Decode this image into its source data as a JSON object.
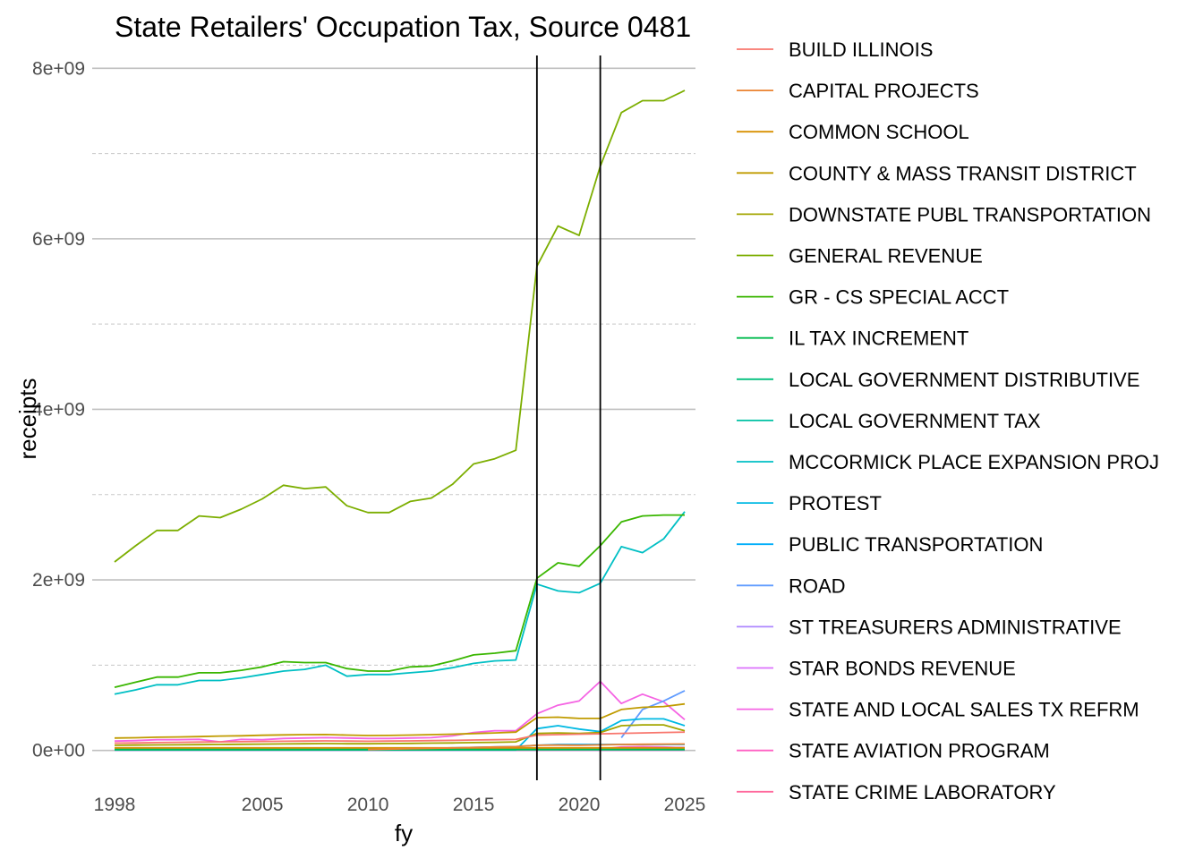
{
  "chart_data": {
    "type": "line",
    "title": "State Retailers' Occupation Tax, Source 0481",
    "xlabel": "fy",
    "ylabel": "receipts",
    "x_ticks": [
      1998,
      2005,
      2010,
      2015,
      2020,
      2025
    ],
    "y_ticks": [
      0,
      2000000000,
      4000000000,
      6000000000,
      8000000000
    ],
    "y_tick_labels": [
      "0e+00",
      "2e+09",
      "4e+09",
      "6e+09",
      "8e+09"
    ],
    "xlim": [
      1998,
      2025
    ],
    "ylim": [
      -350000000,
      8150000000
    ],
    "vlines": [
      2018,
      2021
    ],
    "grid": true,
    "legend_position": "right",
    "series": [
      {
        "name": "BUILD ILLINOIS",
        "color": "#F8766D",
        "x": [
          1998,
          1999,
          2000,
          2001,
          2002,
          2003,
          2004,
          2005,
          2006,
          2007,
          2008,
          2009,
          2010,
          2011,
          2012,
          2013,
          2014,
          2015,
          2016,
          2017,
          2018,
          2019,
          2020,
          2021,
          2022,
          2023,
          2024,
          2025
        ],
        "values": [
          85000000,
          88000000,
          92000000,
          95000000,
          98000000,
          100000000,
          102000000,
          105000000,
          108000000,
          110000000,
          112000000,
          110000000,
          108000000,
          110000000,
          112000000,
          115000000,
          118000000,
          122000000,
          125000000,
          128000000,
          180000000,
          185000000,
          190000000,
          195000000,
          200000000,
          205000000,
          210000000,
          215000000
        ]
      },
      {
        "name": "CAPITAL PROJECTS",
        "color": "#EA8331",
        "x": [
          2010,
          2011,
          2012,
          2013,
          2014,
          2015,
          2016,
          2017,
          2018,
          2019,
          2020,
          2021,
          2022,
          2023,
          2024,
          2025
        ],
        "values": [
          10000000,
          15000000,
          20000000,
          25000000,
          30000000,
          35000000,
          40000000,
          45000000,
          60000000,
          62000000,
          60000000,
          65000000,
          70000000,
          72000000,
          74000000,
          75000000
        ]
      },
      {
        "name": "COMMON SCHOOL",
        "color": "#D89000",
        "x": [
          1998,
          1999,
          2000,
          2001,
          2002,
          2003,
          2004,
          2005,
          2006,
          2007,
          2008,
          2009,
          2010,
          2011,
          2012,
          2013,
          2014,
          2015,
          2016,
          2017,
          2018,
          2019,
          2020,
          2021,
          2022,
          2023,
          2024,
          2025
        ],
        "values": [
          30000000,
          30000000,
          30000000,
          30000000,
          30000000,
          30000000,
          30000000,
          30000000,
          30000000,
          30000000,
          30000000,
          30000000,
          30000000,
          30000000,
          30000000,
          30000000,
          30000000,
          30000000,
          30000000,
          30000000,
          30000000,
          30000000,
          30000000,
          30000000,
          30000000,
          30000000,
          30000000,
          30000000
        ]
      },
      {
        "name": "COUNTY & MASS TRANSIT DISTRICT",
        "color": "#C09B00",
        "x": [
          1998,
          1999,
          2000,
          2001,
          2002,
          2003,
          2004,
          2005,
          2006,
          2007,
          2008,
          2009,
          2010,
          2011,
          2012,
          2013,
          2014,
          2015,
          2016,
          2017,
          2018,
          2019,
          2020,
          2021,
          2022,
          2023,
          2024,
          2025
        ],
        "values": [
          145000000,
          148000000,
          155000000,
          158000000,
          162000000,
          168000000,
          172000000,
          178000000,
          182000000,
          185000000,
          186000000,
          180000000,
          175000000,
          176000000,
          180000000,
          185000000,
          190000000,
          198000000,
          205000000,
          215000000,
          385000000,
          390000000,
          375000000,
          375000000,
          480000000,
          505000000,
          515000000,
          545000000
        ]
      },
      {
        "name": "DOWNSTATE PUBL TRANSPORTATION",
        "color": "#A3A500",
        "x": [
          1998,
          1999,
          2000,
          2001,
          2002,
          2003,
          2004,
          2005,
          2006,
          2007,
          2008,
          2009,
          2010,
          2011,
          2012,
          2013,
          2014,
          2015,
          2016,
          2017,
          2018,
          2019,
          2020,
          2021,
          2022,
          2023,
          2024,
          2025
        ],
        "values": [
          60000000,
          62000000,
          64000000,
          66000000,
          68000000,
          70000000,
          72000000,
          74000000,
          76000000,
          78000000,
          80000000,
          78000000,
          78000000,
          80000000,
          82000000,
          85000000,
          88000000,
          92000000,
          95000000,
          100000000,
          200000000,
          205000000,
          200000000,
          210000000,
          290000000,
          300000000,
          300000000,
          230000000
        ]
      },
      {
        "name": "GENERAL REVENUE",
        "color": "#7CAE00",
        "x": [
          1998,
          1999,
          2000,
          2001,
          2002,
          2003,
          2004,
          2005,
          2006,
          2007,
          2008,
          2009,
          2010,
          2011,
          2012,
          2013,
          2014,
          2015,
          2016,
          2017,
          2018,
          2019,
          2020,
          2021,
          2022,
          2023,
          2024,
          2025
        ],
        "values": [
          2210000000,
          2400000000,
          2580000000,
          2580000000,
          2750000000,
          2730000000,
          2830000000,
          2950000000,
          3110000000,
          3070000000,
          3090000000,
          2870000000,
          2790000000,
          2790000000,
          2920000000,
          2960000000,
          3120000000,
          3360000000,
          3420000000,
          3520000000,
          5680000000,
          6150000000,
          6040000000,
          6850000000,
          7480000000,
          7620000000,
          7620000000,
          7740000000
        ]
      },
      {
        "name": "GR - CS SPECIAL ACCT",
        "color": "#39B600",
        "x": [
          1998,
          1999,
          2000,
          2001,
          2002,
          2003,
          2004,
          2005,
          2006,
          2007,
          2008,
          2009,
          2010,
          2011,
          2012,
          2013,
          2014,
          2015,
          2016,
          2017,
          2018,
          2019,
          2020,
          2021,
          2022,
          2023,
          2024,
          2025
        ],
        "values": [
          740000000,
          800000000,
          860000000,
          860000000,
          910000000,
          910000000,
          940000000,
          980000000,
          1040000000,
          1030000000,
          1030000000,
          960000000,
          930000000,
          930000000,
          980000000,
          990000000,
          1050000000,
          1120000000,
          1140000000,
          1170000000,
          2020000000,
          2200000000,
          2160000000,
          2400000000,
          2680000000,
          2750000000,
          2760000000,
          2760000000
        ]
      },
      {
        "name": "IL TAX INCREMENT",
        "color": "#00BB4E",
        "x": [
          1998,
          1999,
          2000,
          2001,
          2002,
          2003,
          2004,
          2005,
          2006,
          2007,
          2008,
          2009,
          2010,
          2011,
          2012,
          2013,
          2014,
          2015,
          2016,
          2017,
          2018,
          2019,
          2020,
          2021,
          2022,
          2023,
          2024,
          2025
        ],
        "values": [
          8000000,
          8000000,
          8000000,
          8000000,
          8000000,
          8000000,
          8000000,
          8000000,
          8000000,
          8000000,
          8000000,
          8000000,
          8000000,
          8000000,
          8000000,
          8000000,
          8000000,
          8000000,
          8000000,
          8000000,
          8000000,
          8000000,
          8000000,
          8000000,
          8000000,
          8000000,
          8000000,
          8000000
        ]
      },
      {
        "name": "LOCAL GOVERNMENT DISTRIBUTIVE",
        "color": "#00BF7D",
        "x": [
          1998,
          1999,
          2000,
          2001,
          2002,
          2003,
          2004,
          2005,
          2006,
          2007,
          2008,
          2009,
          2010,
          2011,
          2012,
          2013,
          2014,
          2015,
          2016,
          2017,
          2018,
          2019,
          2020,
          2021,
          2022,
          2023,
          2024,
          2025
        ],
        "values": [
          20000000,
          20000000,
          20000000,
          20000000,
          20000000,
          20000000,
          20000000,
          20000000,
          20000000,
          20000000,
          20000000,
          20000000,
          20000000,
          20000000,
          20000000,
          20000000,
          20000000,
          20000000,
          20000000,
          20000000,
          20000000,
          20000000,
          20000000,
          20000000,
          20000000,
          20000000,
          20000000,
          20000000
        ]
      },
      {
        "name": "LOCAL GOVERNMENT TAX",
        "color": "#00C1A3",
        "x": [
          1998,
          1999,
          2000,
          2001,
          2002,
          2003,
          2004,
          2005,
          2006,
          2007,
          2008,
          2009,
          2010,
          2011,
          2012,
          2013,
          2014,
          2015,
          2016,
          2017,
          2018,
          2019,
          2020,
          2021,
          2022,
          2023,
          2024,
          2025
        ],
        "values": [
          12000000,
          12000000,
          12000000,
          12000000,
          12000000,
          12000000,
          12000000,
          12000000,
          12000000,
          12000000,
          12000000,
          12000000,
          12000000,
          12000000,
          12000000,
          12000000,
          12000000,
          12000000,
          12000000,
          12000000,
          12000000,
          12000000,
          12000000,
          12000000,
          12000000,
          12000000,
          12000000,
          12000000
        ]
      },
      {
        "name": "MCCORMICK PLACE EXPANSION PROJ",
        "color": "#00BFC4",
        "x": [
          1998,
          1999,
          2000,
          2001,
          2002,
          2003,
          2004,
          2005,
          2006,
          2007,
          2008,
          2009,
          2010,
          2011,
          2012,
          2013,
          2014,
          2015,
          2016,
          2017,
          2018,
          2019,
          2020,
          2021,
          2022,
          2023,
          2024,
          2025
        ],
        "values": [
          660000000,
          710000000,
          770000000,
          770000000,
          820000000,
          820000000,
          850000000,
          890000000,
          930000000,
          950000000,
          1000000000,
          870000000,
          890000000,
          890000000,
          910000000,
          930000000,
          970000000,
          1020000000,
          1050000000,
          1060000000,
          1950000000,
          1870000000,
          1850000000,
          1960000000,
          2390000000,
          2320000000,
          2480000000,
          2800000000
        ]
      },
      {
        "name": "PROTEST",
        "color": "#00B9E3",
        "x": [
          1998,
          1999,
          2000,
          2001,
          2002,
          2003,
          2004,
          2005,
          2006,
          2007,
          2008,
          2009,
          2010,
          2011,
          2012,
          2013,
          2014,
          2015,
          2016,
          2017,
          2018,
          2019,
          2020,
          2021,
          2022,
          2023,
          2024,
          2025
        ],
        "values": [
          5000000,
          5000000,
          5000000,
          5000000,
          5000000,
          5000000,
          5000000,
          5000000,
          5000000,
          5000000,
          5000000,
          5000000,
          5000000,
          5000000,
          5000000,
          5000000,
          5000000,
          5000000,
          5000000,
          5000000,
          255000000,
          290000000,
          250000000,
          220000000,
          350000000,
          370000000,
          370000000,
          290000000
        ]
      },
      {
        "name": "PUBLIC TRANSPORTATION",
        "color": "#00ADFA",
        "x": [
          1998,
          1999,
          2000,
          2001,
          2002,
          2003,
          2004,
          2005,
          2006,
          2007,
          2008,
          2009,
          2010,
          2011,
          2012,
          2013,
          2014,
          2015,
          2016,
          2017,
          2018,
          2019,
          2020,
          2021,
          2022,
          2023,
          2024,
          2025
        ],
        "values": [
          20000000,
          20000000,
          20000000,
          20000000,
          20000000,
          20000000,
          20000000,
          20000000,
          20000000,
          20000000,
          20000000,
          20000000,
          20000000,
          20000000,
          20000000,
          25000000,
          30000000,
          35000000,
          40000000,
          45000000,
          60000000,
          70000000,
          70000000,
          70000000,
          70000000,
          70000000,
          70000000,
          70000000
        ]
      },
      {
        "name": "ROAD",
        "color": "#619CFF",
        "x": [
          2022,
          2023,
          2024,
          2025
        ],
        "values": [
          150000000,
          480000000,
          580000000,
          700000000
        ]
      },
      {
        "name": "ST TREASURERS ADMINISTRATIVE",
        "color": "#AE87FF",
        "x": [
          1998,
          1999,
          2000,
          2001,
          2002,
          2003,
          2004,
          2005,
          2006,
          2007,
          2008,
          2009,
          2010,
          2011,
          2012,
          2013,
          2014,
          2015,
          2016,
          2017,
          2018,
          2019,
          2020,
          2021,
          2022,
          2023,
          2024,
          2025
        ],
        "values": [
          3000000,
          3000000,
          3000000,
          3000000,
          3000000,
          3000000,
          3000000,
          3000000,
          3000000,
          3000000,
          3000000,
          3000000,
          3000000,
          3000000,
          3000000,
          3000000,
          3000000,
          3000000,
          3000000,
          3000000,
          3000000,
          3000000,
          3000000,
          3000000,
          3000000,
          3000000,
          3000000,
          3000000
        ]
      },
      {
        "name": "STAR BONDS REVENUE",
        "color": "#DB72FB",
        "x": [
          2014,
          2015,
          2016,
          2017,
          2018,
          2019,
          2020,
          2021,
          2022,
          2023,
          2024,
          2025
        ],
        "values": [
          5000000,
          5000000,
          10000000,
          15000000,
          20000000,
          25000000,
          20000000,
          25000000,
          30000000,
          30000000,
          35000000,
          35000000
        ]
      },
      {
        "name": "STATE AND LOCAL SALES TX REFRM",
        "color": "#F564E3",
        "x": [
          1998,
          1999,
          2000,
          2001,
          2002,
          2003,
          2004,
          2005,
          2006,
          2007,
          2008,
          2009,
          2010,
          2011,
          2012,
          2013,
          2014,
          2015,
          2016,
          2017,
          2018,
          2019,
          2020,
          2021,
          2022,
          2023,
          2024,
          2025
        ],
        "values": [
          110000000,
          115000000,
          125000000,
          125000000,
          130000000,
          100000000,
          130000000,
          125000000,
          140000000,
          145000000,
          150000000,
          145000000,
          140000000,
          140000000,
          145000000,
          150000000,
          170000000,
          210000000,
          230000000,
          230000000,
          430000000,
          530000000,
          580000000,
          810000000,
          550000000,
          660000000,
          570000000,
          360000000
        ]
      },
      {
        "name": "STATE AVIATION PROGRAM",
        "color": "#FF61C3",
        "x": [
          2019,
          2020,
          2021,
          2022,
          2023,
          2024,
          2025
        ],
        "values": [
          5000000,
          10000000,
          15000000,
          40000000,
          45000000,
          40000000,
          30000000
        ]
      },
      {
        "name": "STATE CRIME LABORATORY",
        "color": "#FF699C",
        "x": [
          1998,
          1999,
          2000,
          2001,
          2002,
          2003,
          2004,
          2005,
          2006,
          2007,
          2008,
          2009,
          2010,
          2011,
          2012,
          2013,
          2014,
          2015,
          2016,
          2017,
          2018,
          2019,
          2020,
          2021,
          2022,
          2023,
          2024,
          2025
        ],
        "values": [
          2000000,
          2000000,
          2000000,
          2000000,
          2000000,
          2000000,
          2000000,
          2000000,
          2000000,
          2000000,
          2000000,
          2000000,
          2000000,
          2000000,
          2000000,
          2000000,
          2000000,
          2000000,
          2000000,
          2000000,
          2000000,
          2000000,
          2000000,
          2000000,
          2000000,
          2000000,
          2000000,
          2000000
        ]
      }
    ]
  }
}
